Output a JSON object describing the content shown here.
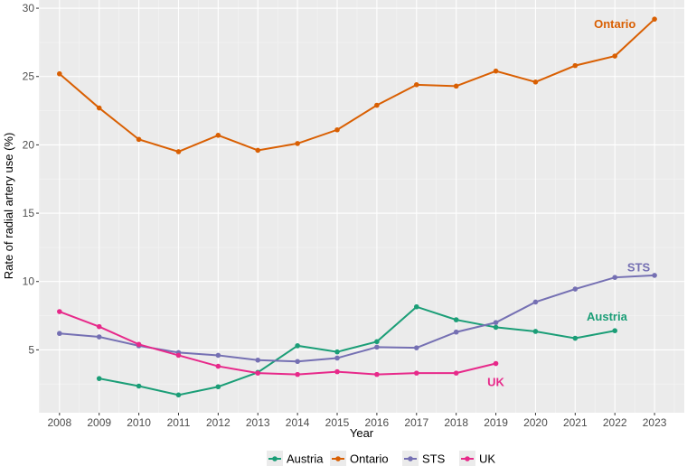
{
  "chart_data": {
    "type": "line",
    "title": "",
    "xlabel": "Year",
    "ylabel": "Rate of radial artery use (%)",
    "x": [
      2008,
      2009,
      2010,
      2011,
      2012,
      2013,
      2014,
      2015,
      2016,
      2017,
      2018,
      2019,
      2020,
      2021,
      2022,
      2023
    ],
    "xticks": [
      "2008",
      "2009",
      "2010",
      "2011",
      "2012",
      "2013",
      "2014",
      "2015",
      "2016",
      "2017",
      "2018",
      "2019",
      "2020",
      "2021",
      "2022",
      "2023"
    ],
    "yticks": [
      "5",
      "10",
      "15",
      "20",
      "25",
      "30"
    ],
    "xlim": [
      2007.48,
      2023.75
    ],
    "ylim": [
      0.4,
      30.6
    ],
    "grid": true,
    "legend_position": "bottom",
    "series": [
      {
        "name": "Austria",
        "color": "#1b9e77",
        "label": "Austria",
        "x": [
          2009,
          2010,
          2011,
          2012,
          2013,
          2014,
          2015,
          2016,
          2017,
          2018,
          2019,
          2020,
          2021,
          2022
        ],
        "values": [
          2.9,
          2.35,
          1.7,
          2.3,
          3.35,
          5.3,
          4.85,
          5.6,
          8.15,
          7.2,
          6.65,
          6.35,
          5.85,
          6.4
        ]
      },
      {
        "name": "Ontario",
        "color": "#d95f02",
        "label": "Ontario",
        "x": [
          2008,
          2009,
          2010,
          2011,
          2012,
          2013,
          2014,
          2015,
          2016,
          2017,
          2018,
          2019,
          2020,
          2021,
          2022,
          2023
        ],
        "values": [
          25.2,
          22.7,
          20.4,
          19.5,
          20.7,
          19.6,
          20.1,
          21.1,
          22.9,
          24.4,
          24.3,
          25.4,
          24.6,
          25.8,
          26.5,
          29.2
        ]
      },
      {
        "name": "STS",
        "color": "#7570b3",
        "label": "STS",
        "x": [
          2008,
          2009,
          2010,
          2011,
          2012,
          2013,
          2014,
          2015,
          2016,
          2017,
          2018,
          2019,
          2020,
          2021,
          2022,
          2023
        ],
        "values": [
          6.2,
          5.95,
          5.3,
          4.8,
          4.6,
          4.25,
          4.15,
          4.4,
          5.2,
          5.15,
          6.3,
          7.0,
          8.5,
          9.45,
          10.3,
          10.45
        ]
      },
      {
        "name": "UK",
        "color": "#e7298a",
        "label": "UK",
        "x": [
          2008,
          2009,
          2010,
          2011,
          2012,
          2013,
          2014,
          2015,
          2016,
          2017,
          2018,
          2019
        ],
        "values": [
          7.8,
          6.7,
          5.4,
          4.6,
          3.8,
          3.3,
          3.2,
          3.4,
          3.2,
          3.3,
          3.3,
          4.0
        ]
      }
    ]
  }
}
